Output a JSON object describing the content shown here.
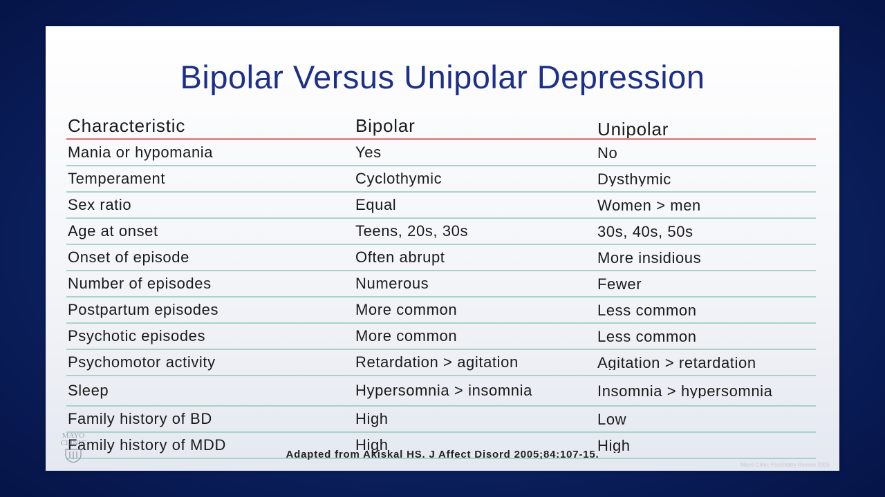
{
  "slide": {
    "title": "Bipolar Versus Unipolar Depression",
    "citation": "Adapted from Akiskal HS. J Affect Disord 2005;84:107-15.",
    "logo_text": [
      "MAYO",
      "CLINIC"
    ],
    "watermark": "Mayo Clinic Psychiatry Review 2005"
  },
  "table": {
    "headers": [
      "Characteristic",
      "Bipolar",
      "Unipolar"
    ],
    "rows": [
      [
        "Mania or hypomania",
        "Yes",
        "No"
      ],
      [
        "Temperament",
        "Cyclothymic",
        "Dysthymic"
      ],
      [
        "Sex ratio",
        "Equal",
        "Women > men"
      ],
      [
        "Age at onset",
        "Teens, 20s, 30s",
        "30s, 40s, 50s"
      ],
      [
        "Onset of episode",
        "Often abrupt",
        "More insidious"
      ],
      [
        "Number of episodes",
        "Numerous",
        "Fewer"
      ],
      [
        "Postpartum episodes",
        "More common",
        "Less common"
      ],
      [
        "Psychotic episodes",
        "More common",
        "Less common"
      ],
      [
        "Psychomotor activity",
        "Retardation > agitation",
        "Agitation > retardation"
      ],
      [
        "Sleep",
        "Hypersomnia > insomnia",
        "Insomnia > hypersomnia"
      ],
      [
        "Family history of BD",
        "High",
        "Low"
      ],
      [
        "Family history of MDD",
        "High",
        "High"
      ]
    ]
  },
  "colors": {
    "title": "#1c2f8a",
    "header_rule": "#e08e8c",
    "row_rule": "#a9d4c4",
    "background": "#0c2466"
  }
}
